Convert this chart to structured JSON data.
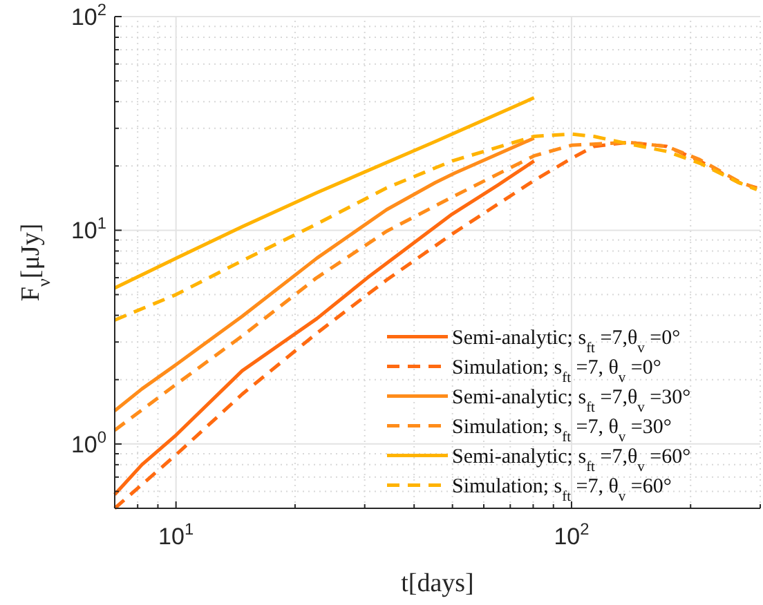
{
  "chart_data": {
    "type": "line",
    "xlabel": "t[days]",
    "ylabel": "F$_{ν}$[μJy]",
    "log": "xy",
    "grid": true,
    "legend": "bottom right",
    "xlim": [
      7,
      300
    ],
    "ylim": [
      0.5,
      100
    ],
    "xticks": [
      {
        "value": 10,
        "label": "10$^{1}$"
      },
      {
        "value": 100,
        "label": "10$^{2}$"
      }
    ],
    "yticks": [
      {
        "value": 1,
        "label": "10$^{0}$"
      },
      {
        "value": 10,
        "label": "10$^{1}$"
      },
      {
        "value": 100,
        "label": "10$^{2}$"
      }
    ],
    "series": [
      {
        "name": "Semi-analytic; s$_{ft}$ =7,θ$_{v}$ =0°",
        "color": "#ff6a10",
        "line_style": "solid",
        "x": [
          7,
          8.2,
          10,
          14.7,
          22.7,
          30.5,
          49.9,
          65.2,
          80.4
        ],
        "values": [
          0.58,
          0.8,
          1.1,
          2.2,
          3.86,
          6.0,
          11.9,
          16.3,
          21.1
        ]
      },
      {
        "name": "Simulation; s$_{ft}$ =7, θ$_{v}$ =0°",
        "color": "#ff6a10",
        "line_style": "dashed",
        "x": [
          7,
          10,
          14.7,
          22.7,
          34.1,
          49.9,
          80.4,
          100,
          114,
          139,
          174,
          211,
          265,
          294
        ],
        "values": [
          0.5,
          0.89,
          1.71,
          3.3,
          5.86,
          9.6,
          17.1,
          21.7,
          24.7,
          25.8,
          24.7,
          21.1,
          16.7,
          15.8
        ]
      },
      {
        "name": "Semi-analytic; s$_{ft}$ =7,θ$_{v}$ =30°",
        "color": "#ff8c1a",
        "line_style": "solid",
        "x": [
          7,
          8.2,
          10,
          14.7,
          22.7,
          34.1,
          45.2,
          50.6,
          80.4
        ],
        "values": [
          1.43,
          1.81,
          2.35,
          3.96,
          7.4,
          12.5,
          16.7,
          18.5,
          27.0
        ]
      },
      {
        "name": "Simulation; s$_{ft}$ =7, θ$_{v}$ =30°",
        "color": "#ff8c1a",
        "line_style": "dashed",
        "x": [
          7,
          10,
          14.7,
          22.7,
          34.1,
          49.9,
          80.4,
          100,
          139,
          174,
          211,
          265,
          294
        ],
        "values": [
          1.16,
          1.9,
          3.2,
          6.0,
          9.9,
          14.3,
          22.3,
          25,
          25.8,
          24.7,
          21.4,
          16.9,
          15.7
        ]
      },
      {
        "name": "Semi-analytic; s$_{ft}$ =7,θ$_{v}$ =60°",
        "color": "#ffb300",
        "line_style": "solid",
        "x": [
          7,
          10,
          14.7,
          22.7,
          45.2,
          80.4
        ],
        "values": [
          5.37,
          7.4,
          10.4,
          15.0,
          26,
          41.7
        ]
      },
      {
        "name": "Simulation; s$_{ft}$ =7, θ$_{v}$ =60°",
        "color": "#ffb300",
        "line_style": "dashed",
        "x": [
          7,
          10,
          14.7,
          22.7,
          34.1,
          49.9,
          80.4,
          100,
          114,
          139,
          174,
          211,
          265,
          294
        ],
        "values": [
          3.8,
          5.0,
          7.2,
          10.7,
          15.8,
          21.1,
          27.5,
          28.2,
          27.5,
          25.4,
          23.4,
          20.6,
          16.7,
          15.5
        ]
      }
    ]
  }
}
